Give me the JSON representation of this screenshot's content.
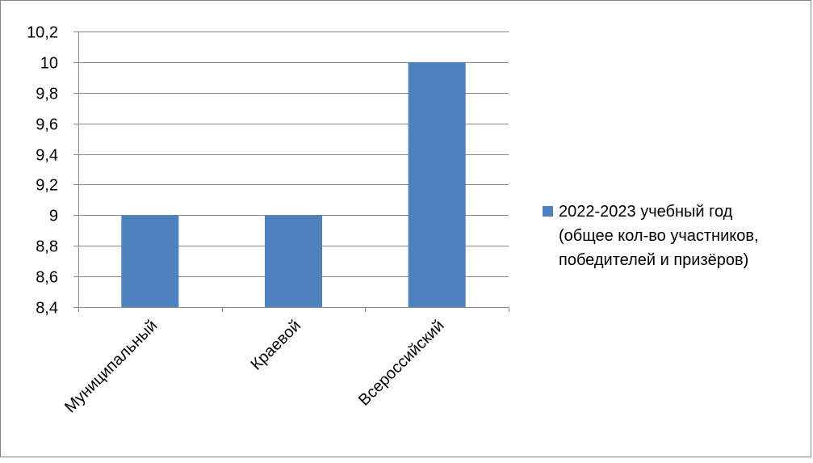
{
  "chart_data": {
    "type": "bar",
    "categories": [
      "Муниципальный",
      "Краевой",
      "Всероссийский"
    ],
    "series": [
      {
        "name": "2022-2023 учебный год (общее кол-во участников, победителей и призёров)",
        "legend_lines": [
          "2022-2023 учебный год",
          "(общее кол-во участников,",
          "победителей и призёров)"
        ],
        "values": [
          9,
          9,
          10
        ],
        "color": "#4F81BD"
      }
    ],
    "ylim": [
      8.4,
      10.2
    ],
    "yticks": [
      8.4,
      8.6,
      8.8,
      9,
      9.2,
      9.4,
      9.6,
      9.8,
      10,
      10.2
    ],
    "ytick_labels": [
      "8,4",
      "8,6",
      "8,8",
      "9",
      "9,2",
      "9,4",
      "9,6",
      "9,8",
      "10",
      "10,2"
    ],
    "grid": true,
    "legend_position": "right",
    "gridline_color": "#868686",
    "axis_color": "#868686",
    "frame_color": "#868686"
  }
}
